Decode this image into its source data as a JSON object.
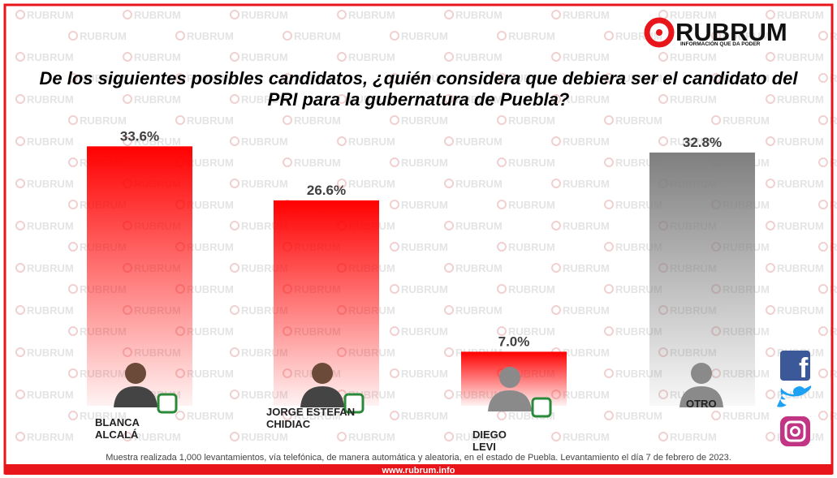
{
  "watermark": "RUBRUM",
  "logo": {
    "name": "RUBRUM",
    "tagline": "INFORMACIÓN QUE DA PODER"
  },
  "chart_data": {
    "type": "bar",
    "title": [
      "De los siguientes posibles candidatos, ¿quién considera que debiera ser  el candidato del",
      "PRI para la gubernatura de Puebla?"
    ],
    "categories": [
      "BLANCA ALCALÁ",
      "JORGE ESTEFAN CHIDIAC",
      "DIEGO LEVI",
      "OTRO"
    ],
    "values": [
      33.6,
      26.6,
      7.0,
      32.8
    ],
    "value_labels": [
      "33.6%",
      "26.6%",
      "7.0%",
      "32.8%"
    ],
    "colors": [
      "#ff0000",
      "#ff0000",
      "#ff0000",
      "#7f7f7f"
    ],
    "ylim": [
      0,
      35
    ]
  },
  "footer": {
    "note": "Muestra realizada 1,000 levantamientos, vía telefónica, de manera automática y aleatoria, en el estado de Puebla. Levantamiento el día 7 de febrero de 2023.",
    "website": "www.rubrum.info"
  }
}
